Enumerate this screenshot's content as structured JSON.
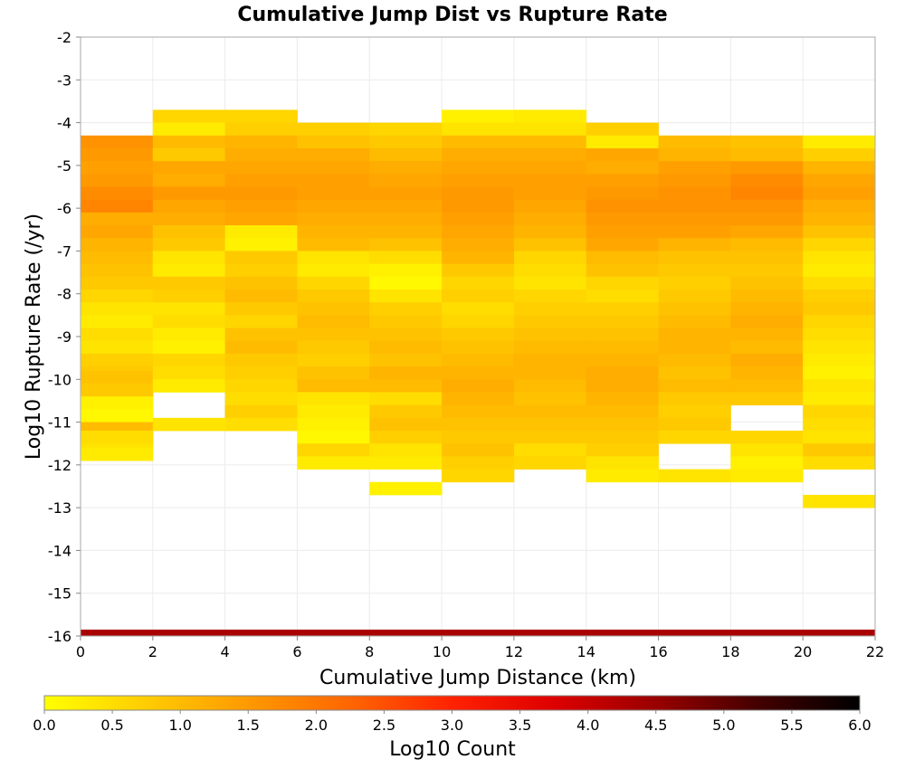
{
  "chart_data": {
    "type": "heatmap",
    "title": "Cumulative Jump Dist vs Rupture Rate",
    "xlabel": "Cumulative Jump Distance (km)",
    "ylabel": "Log10 Rupture Rate (/yr)",
    "xlim": [
      0,
      22
    ],
    "ylim": [
      -16,
      -2
    ],
    "x_ticks": [
      0,
      2,
      4,
      6,
      8,
      10,
      12,
      14,
      16,
      18,
      20,
      22
    ],
    "y_ticks": [
      -2,
      -3,
      -4,
      -5,
      -6,
      -7,
      -8,
      -9,
      -10,
      -11,
      -12,
      -13,
      -14,
      -15,
      -16
    ],
    "grid": true,
    "x_bin_width": 2,
    "y_bin_height": 0.3,
    "colorbar": {
      "label": "Log10 Count",
      "range": [
        0,
        6
      ],
      "ticks": [
        "0.0",
        "0.5",
        "1.0",
        "1.5",
        "2.0",
        "2.5",
        "3.0",
        "3.5",
        "4.0",
        "4.5",
        "5.0",
        "5.5",
        "6.0"
      ],
      "colormap": [
        "#ffff00",
        "#ffcc00",
        "#ff9900",
        "#ff6600",
        "#ff2200",
        "#dd0000",
        "#990000",
        "#440000",
        "#000000"
      ]
    },
    "cells": [
      {
        "x0": 0,
        "y0": -4.6,
        "values": [
          1.6,
          1.5,
          1.4,
          1.3,
          1.2,
          1.0
        ]
      },
      {
        "x0": 0,
        "y0": -5.5,
        "values": [
          1.5,
          1.7,
          1.8,
          1.6,
          1.5,
          1.4,
          1.3,
          1.2,
          1.1,
          1.0
        ]
      },
      {
        "x0": 0,
        "y0": -6.4,
        "values": [
          1.2,
          1.3,
          1.1,
          1.0,
          0.9,
          0.8,
          0.6,
          0.4,
          0.3,
          0.5,
          0.4,
          0.7,
          0.8,
          0.6,
          0.9,
          1.0,
          0.8,
          0.9,
          0.7
        ]
      },
      {
        "x0": 0,
        "y0": -10.1,
        "values": [
          0.9,
          0.8,
          0.2,
          0.1,
          1.0,
          0.4,
          0.3
        ]
      },
      {
        "x0": 0,
        "y0": -11.5,
        "values": [
          0.5
        ]
      },
      {
        "x0": 2,
        "y0": -4.0,
        "values": [
          0.6,
          0.3
        ]
      },
      {
        "x0": 2,
        "y0": -4.6,
        "values": [
          1.0,
          0.8,
          1.3,
          1.2,
          1.5
        ]
      },
      {
        "x0": 2,
        "y0": -6.1,
        "values": [
          1.3,
          1.2,
          0.9,
          0.8,
          0.5,
          0.4
        ]
      },
      {
        "x0": 2,
        "y0": -7.3,
        "values": [
          0.4,
          0.3
        ]
      },
      {
        "x0": 2,
        "y0": -7.9,
        "values": [
          0.8,
          0.7
        ]
      },
      {
        "x0": 2,
        "y0": -8.5,
        "values": [
          0.4,
          0.5
        ]
      },
      {
        "x0": 2,
        "y0": -9.1,
        "values": [
          0.3,
          0.2
        ]
      },
      {
        "x0": 2,
        "y0": -9.7,
        "values": [
          0.6,
          0.5,
          0.3
        ]
      },
      {
        "x0": 2,
        "y0": -11.2,
        "values": [
          0.4
        ]
      },
      {
        "x0": 4,
        "y0": -4.0,
        "values": [
          0.6,
          0.7
        ]
      },
      {
        "x0": 4,
        "y0": -4.6,
        "values": [
          1.1,
          1.2,
          1.3,
          1.4,
          1.5,
          1.4,
          1.3,
          1.2,
          0.9,
          0.6
        ]
      },
      {
        "x0": 4,
        "y0": -6.7,
        "values": [
          0.3,
          0.2
        ]
      },
      {
        "x0": 4,
        "y0": -7.3,
        "values": [
          0.8,
          0.7
        ]
      },
      {
        "x0": 4,
        "y0": -7.9,
        "values": [
          0.9,
          1.0,
          0.8,
          0.6,
          0.9,
          1.0,
          0.8,
          0.7,
          0.6,
          0.5,
          0.3,
          0.2
        ]
      },
      {
        "x0": 4,
        "y0": -10.9,
        "values": [
          0.7,
          0.5
        ]
      },
      {
        "x0": 6,
        "y0": -4.3,
        "values": [
          0.7,
          0.9
        ]
      },
      {
        "x0": 6,
        "y0": -4.9,
        "values": [
          1.2,
          1.3,
          1.4,
          1.4,
          1.3,
          1.2,
          1.1,
          1.0
        ]
      },
      {
        "x0": 6,
        "y0": -7.3,
        "values": [
          0.4,
          0.3
        ]
      },
      {
        "x0": 6,
        "y0": -7.9,
        "values": [
          0.6,
          0.8,
          0.9,
          1.0,
          0.9,
          0.8,
          0.7,
          0.9,
          1.0,
          1.1,
          0.9
        ]
      },
      {
        "x0": 6,
        "y0": -10.6,
        "values": [
          0.4,
          0.3
        ]
      },
      {
        "x0": 6,
        "y0": -11.2,
        "values": [
          0.2,
          0.1,
          0.6
        ]
      },
      {
        "x0": 6,
        "y0": -12.1,
        "values": [
          0.3
        ]
      },
      {
        "x0": 8,
        "y0": -4.3,
        "values": [
          0.6,
          0.8
        ]
      },
      {
        "x0": 8,
        "y0": -4.9,
        "values": [
          1.0,
          1.2,
          1.3,
          1.4,
          1.3,
          1.2,
          1.1,
          0.9,
          0.5,
          0.2
        ]
      },
      {
        "x0": 8,
        "y0": -7.9,
        "values": [
          0.1,
          0.4,
          0.7,
          0.8,
          0.9,
          1.0,
          0.9,
          1.1,
          1.0,
          0.5
        ]
      },
      {
        "x0": 8,
        "y0": -10.9,
        "values": [
          0.8,
          0.9,
          0.7,
          0.4,
          0.3
        ]
      },
      {
        "x0": 8,
        "y0": -12.7,
        "values": [
          0.2
        ]
      },
      {
        "x0": 10,
        "y0": -4.0,
        "values": [
          0.2,
          0.4
        ]
      },
      {
        "x0": 10,
        "y0": -4.6,
        "values": [
          1.0,
          1.2,
          1.3,
          1.4,
          1.5,
          1.5,
          1.4,
          1.3,
          1.2,
          1.1,
          0.8,
          0.6,
          0.7,
          0.5,
          0.6,
          0.8,
          0.9,
          1.0,
          1.1,
          1.2,
          1.1,
          1.0,
          0.9,
          0.8,
          0.9,
          0.7,
          0.6
        ]
      },
      {
        "x0": 12,
        "y0": -4.0,
        "values": [
          0.3,
          0.4
        ]
      },
      {
        "x0": 12,
        "y0": -4.6,
        "values": [
          1.0,
          1.2,
          1.3,
          1.4,
          1.4,
          1.3,
          1.2,
          1.1,
          0.9,
          0.6,
          0.5,
          0.4,
          0.6,
          0.7,
          0.8,
          0.9,
          1.0,
          1.1,
          1.1,
          1.0,
          0.9,
          1.0,
          0.9,
          0.8
        ]
      },
      {
        "x0": 12,
        "y0": -11.8,
        "values": [
          0.5,
          0.6
        ]
      },
      {
        "x0": 14,
        "y0": -4.3,
        "values": [
          0.7,
          0.3
        ]
      },
      {
        "x0": 14,
        "y0": -4.9,
        "values": [
          1.3,
          1.2,
          1.4,
          1.5,
          1.6,
          1.5,
          1.4,
          1.3,
          1.0,
          0.9,
          0.6,
          0.5,
          0.7,
          0.8,
          0.9,
          1.0,
          1.1,
          1.2,
          1.2,
          1.1,
          1.0,
          0.9,
          0.8,
          0.7
        ]
      },
      {
        "x0": 14,
        "y0": -12.1,
        "values": [
          0.4,
          0.3
        ]
      },
      {
        "x0": 16,
        "y0": -4.6,
        "values": [
          1.0,
          1.1
        ]
      },
      {
        "x0": 16,
        "y0": -5.2,
        "values": [
          1.4,
          1.5,
          1.6,
          1.6,
          1.5,
          1.4,
          1.1,
          0.9,
          0.8,
          0.7,
          0.8,
          0.9,
          1.0,
          1.1,
          1.1,
          1.0,
          0.9,
          1.0,
          0.8,
          0.7,
          0.8,
          0.6
        ]
      },
      {
        "x0": 16,
        "y0": -12.4,
        "values": [
          0.4
        ]
      },
      {
        "x0": 18,
        "y0": -4.6,
        "values": [
          0.9,
          1.0
        ]
      },
      {
        "x0": 18,
        "y0": -5.2,
        "values": [
          1.5,
          1.7,
          1.8,
          1.6,
          1.5,
          1.3,
          1.0,
          0.9,
          0.8,
          0.9,
          1.0,
          1.1,
          1.2,
          1.1,
          1.0,
          1.2,
          1.1,
          1.0,
          0.8
        ]
      },
      {
        "x0": 18,
        "y0": -11.5,
        "values": [
          0.6,
          0.4,
          0.2,
          0.3
        ]
      },
      {
        "x0": 20,
        "y0": -4.6,
        "values": [
          0.3,
          0.7
        ]
      },
      {
        "x0": 20,
        "y0": -5.2,
        "values": [
          1.1,
          1.3,
          1.4,
          1.2,
          1.1,
          0.9,
          0.6,
          0.4,
          0.3,
          0.5,
          0.7,
          0.8,
          0.6,
          0.5,
          0.4,
          0.3,
          0.2,
          0.4,
          0.3
        ]
      },
      {
        "x0": 20,
        "y0": -10.9,
        "values": [
          0.6,
          0.5,
          0.4
        ]
      },
      {
        "x0": 20,
        "y0": -11.8,
        "values": [
          0.8,
          0.5
        ]
      },
      {
        "x0": 20,
        "y0": -13.0,
        "values": [
          0.4
        ]
      }
    ],
    "bottom_band": {
      "x": [
        0,
        22
      ],
      "y": [
        -16,
        -15.85
      ],
      "value": 4.3
    }
  }
}
